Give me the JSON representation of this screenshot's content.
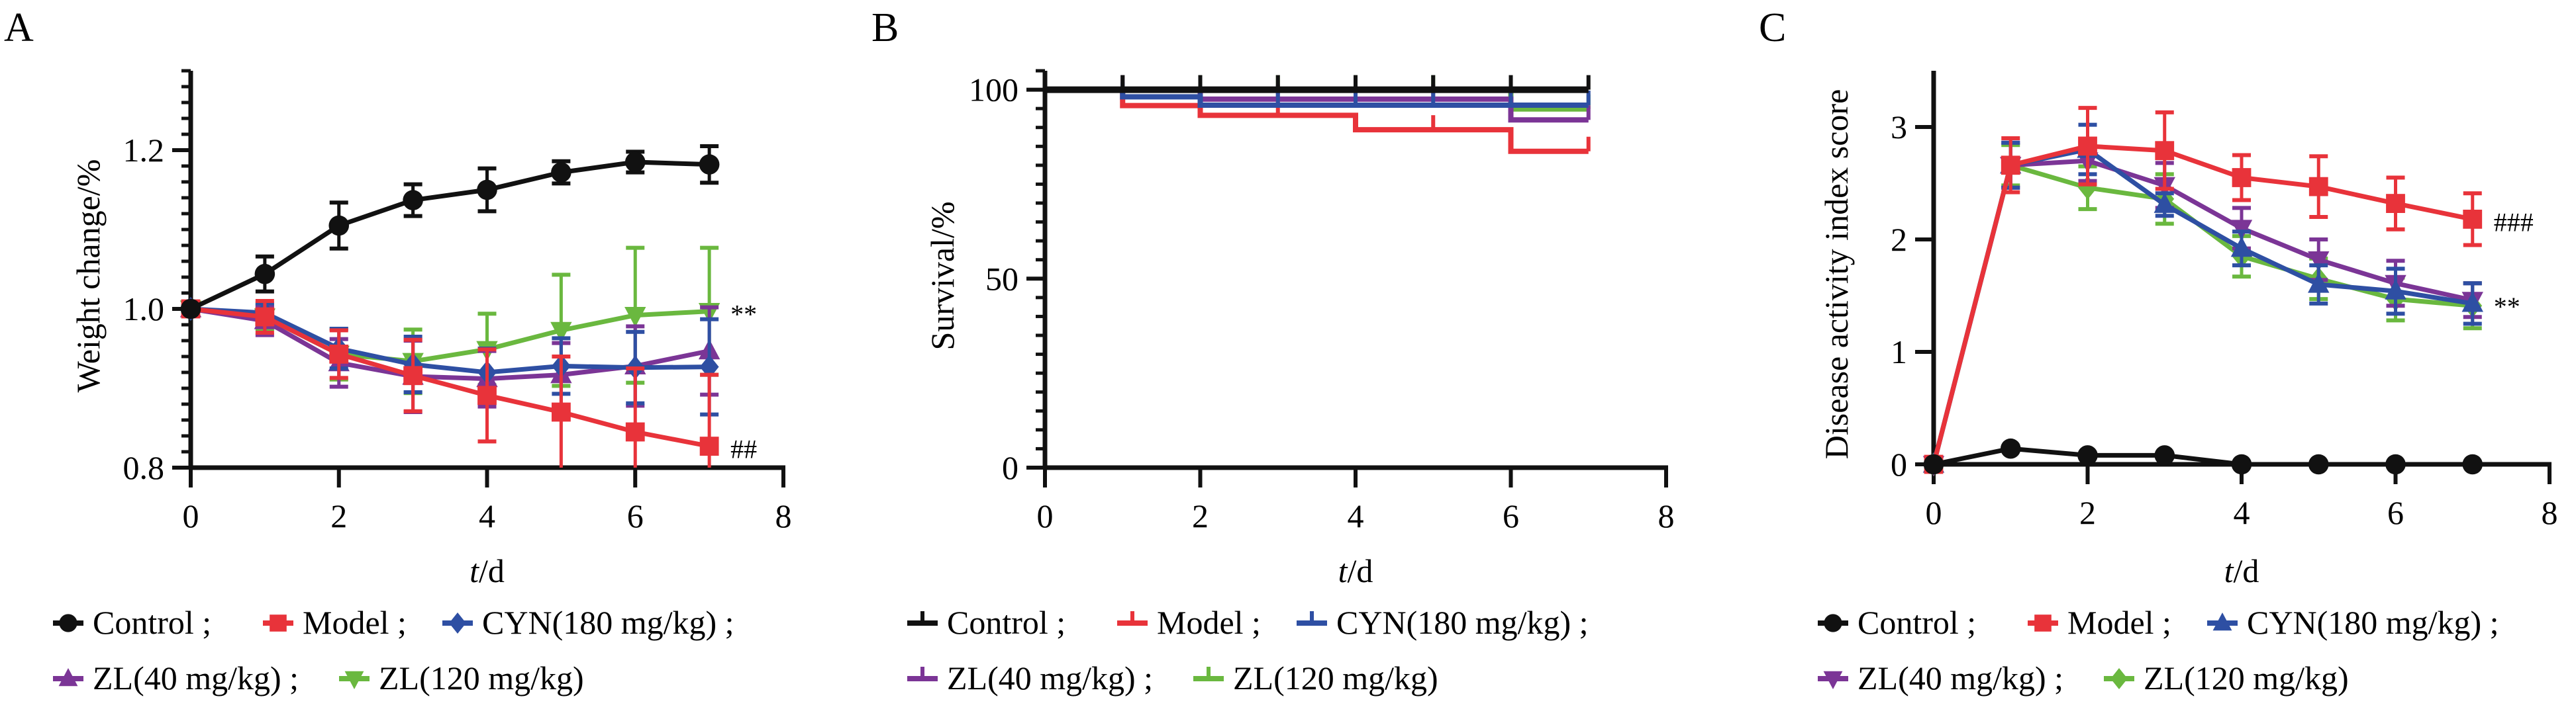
{
  "figure": {
    "legend_rows": [
      [
        0,
        1,
        2
      ],
      [
        3,
        4
      ]
    ]
  },
  "chart_data": [
    {
      "panel": "A",
      "type": "line",
      "title": "",
      "xlabel_italic": "t",
      "xlabel_rest": "/d",
      "ylabel": "Weight change/%",
      "xlim": [
        0,
        8
      ],
      "ylim": [
        0.8,
        1.3
      ],
      "xticks": [
        0,
        2,
        4,
        6,
        8
      ],
      "yticks": [
        0.8,
        1.0,
        1.2
      ],
      "ytick_labels": [
        "0.8",
        "1.0",
        "1.2"
      ],
      "y_minor_step": 0.02,
      "x": [
        0,
        1,
        2,
        3,
        4,
        5,
        6,
        7
      ],
      "series": [
        {
          "name": "Control",
          "color": "#111111",
          "marker": "circle",
          "values": [
            1.0,
            1.044,
            1.105,
            1.137,
            1.15,
            1.172,
            1.185,
            1.182
          ],
          "error": [
            0,
            0.022,
            0.029,
            0.02,
            0.027,
            0.014,
            0.013,
            0.023
          ]
        },
        {
          "name": "Model",
          "color": "#e8333a",
          "marker": "square",
          "values": [
            1.0,
            0.99,
            0.943,
            0.916,
            0.891,
            0.87,
            0.845,
            0.827
          ],
          "error": [
            0,
            0.02,
            0.03,
            0.045,
            0.058,
            0.07,
            0.08,
            0.09
          ]
        },
        {
          "name": "CYN(180 mg/kg)",
          "color": "#2e4fa3",
          "marker": "diamond",
          "values": [
            1.0,
            0.995,
            0.95,
            0.93,
            0.92,
            0.928,
            0.926,
            0.927
          ],
          "error": [
            0,
            0.012,
            0.025,
            0.035,
            0.03,
            0.035,
            0.045,
            0.06
          ]
        },
        {
          "name": "ZL(40 mg/kg)",
          "color": "#7b3596",
          "marker": "triangle-up",
          "values": [
            1.0,
            0.985,
            0.932,
            0.915,
            0.912,
            0.917,
            0.928,
            0.947
          ],
          "error": [
            0,
            0.018,
            0.03,
            0.045,
            0.035,
            0.04,
            0.05,
            0.055
          ]
        },
        {
          "name": "ZL(120 mg/kg)",
          "color": "#6ab83f",
          "marker": "triangle-down",
          "values": [
            1.0,
            0.99,
            0.943,
            0.934,
            0.949,
            0.973,
            0.992,
            0.997
          ],
          "error": [
            0,
            0.015,
            0.032,
            0.04,
            0.045,
            0.07,
            0.085,
            0.08
          ]
        }
      ],
      "annotations": [
        {
          "text": "**",
          "series": 4
        },
        {
          "text": "##",
          "series": 1
        }
      ],
      "legend": "bottom"
    },
    {
      "panel": "B",
      "type": "line",
      "subtype": "step",
      "title": "",
      "xlabel_italic": "t",
      "xlabel_rest": "/d",
      "ylabel": "Survival/%",
      "xlim": [
        0,
        8
      ],
      "ylim": [
        0,
        105
      ],
      "xticks": [
        0,
        2,
        4,
        6,
        8
      ],
      "yticks": [
        0,
        50,
        100
      ],
      "ytick_labels": [
        "0",
        "50",
        "100"
      ],
      "y_minor_step": 5,
      "x": [
        0,
        1,
        2,
        3,
        4,
        5,
        6,
        7
      ],
      "series": [
        {
          "name": "Control",
          "color": "#111111",
          "marker": "tick",
          "values": [
            100,
            100,
            100,
            100,
            100,
            100,
            100,
            100
          ]
        },
        {
          "name": "Model",
          "color": "#e8333a",
          "marker": "tick",
          "values": [
            100,
            95.8,
            93.2,
            93.2,
            89.4,
            89.4,
            83.7,
            83.7
          ]
        },
        {
          "name": "CYN(180 mg/kg)",
          "color": "#2e4fa3",
          "marker": "tick",
          "values": [
            100,
            98.1,
            95.9,
            95.9,
            95.9,
            95.9,
            95.9,
            95.9
          ]
        },
        {
          "name": "ZL(40 mg/kg)",
          "color": "#7b3596",
          "marker": "tick",
          "values": [
            100,
            100,
            97.5,
            97.5,
            97.5,
            97.5,
            92.0,
            92.0
          ]
        },
        {
          "name": "ZL(120 mg/kg)",
          "color": "#6ab83f",
          "marker": "tick",
          "values": [
            100,
            100,
            100,
            100,
            100,
            100,
            94.9,
            94.9
          ]
        }
      ],
      "annotations": [],
      "legend": "bottom"
    },
    {
      "panel": "C",
      "type": "line",
      "title": "",
      "xlabel_italic": "t",
      "xlabel_rest": "/d",
      "ylabel": "Disease activity index score",
      "xlim": [
        0,
        8
      ],
      "ylim": [
        0,
        3.5
      ],
      "xticks": [
        0,
        2,
        4,
        6,
        8
      ],
      "yticks": [
        0,
        1,
        2,
        3
      ],
      "ytick_labels": [
        "0",
        "1",
        "2",
        "3"
      ],
      "y_minor_step": null,
      "x": [
        0,
        1,
        2,
        3,
        4,
        5,
        6,
        7
      ],
      "series": [
        {
          "name": "Control",
          "color": "#111111",
          "marker": "circle",
          "values": [
            0,
            0.14,
            0.08,
            0.08,
            0,
            0,
            0,
            0
          ],
          "error": [
            0,
            0,
            0,
            0,
            0,
            0,
            0,
            0
          ]
        },
        {
          "name": "Model",
          "color": "#e8333a",
          "marker": "square",
          "values": [
            0,
            2.66,
            2.83,
            2.79,
            2.55,
            2.47,
            2.32,
            2.18
          ],
          "error": [
            0,
            0.24,
            0.34,
            0.34,
            0.2,
            0.27,
            0.23,
            0.23
          ]
        },
        {
          "name": "CYN(180 mg/kg)",
          "color": "#2e4fa3",
          "marker": "triangle-up",
          "values": [
            0,
            2.66,
            2.8,
            2.31,
            1.92,
            1.6,
            1.54,
            1.43
          ],
          "error": [
            0,
            0.2,
            0.22,
            0.1,
            0.15,
            0.17,
            0.2,
            0.18
          ]
        },
        {
          "name": "ZL(40 mg/kg)",
          "color": "#7b3596",
          "marker": "triangle-down",
          "values": [
            0,
            2.66,
            2.7,
            2.48,
            2.1,
            1.82,
            1.61,
            1.46
          ],
          "error": [
            0,
            0.2,
            0.18,
            0.2,
            0.18,
            0.18,
            0.2,
            0.15
          ]
        },
        {
          "name": "ZL(120 mg/kg)",
          "color": "#6ab83f",
          "marker": "diamond",
          "values": [
            0,
            2.66,
            2.46,
            2.36,
            1.85,
            1.65,
            1.47,
            1.41
          ],
          "error": [
            0,
            0.18,
            0.19,
            0.22,
            0.18,
            0.18,
            0.19,
            0.2
          ]
        }
      ],
      "annotations": [
        {
          "text": "###",
          "series": 1
        },
        {
          "text": "**",
          "series": 2
        }
      ],
      "legend": "bottom"
    }
  ],
  "legend_separator": " ;"
}
